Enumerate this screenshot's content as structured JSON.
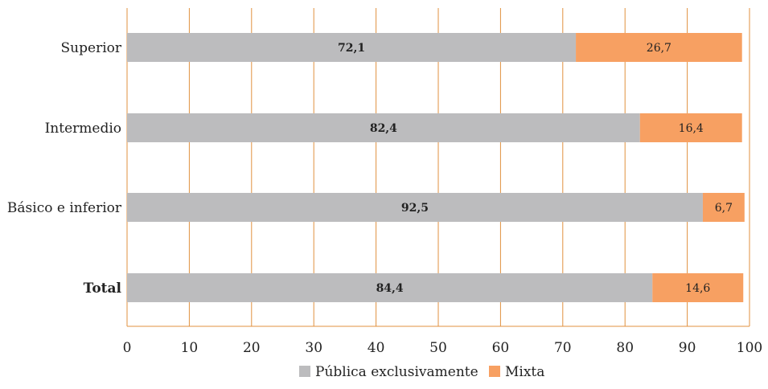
{
  "chart_data": {
    "type": "bar",
    "orientation": "horizontal",
    "stacked": true,
    "categories": [
      "Superior",
      "Intermedio",
      "Básico e inferior",
      "Total"
    ],
    "category_bold": [
      false,
      false,
      false,
      true
    ],
    "series": [
      {
        "name": "Pública exclusivamente",
        "color": "#bcbcbe",
        "values": [
          72.1,
          82.4,
          92.5,
          84.4
        ],
        "labels": [
          "72,1",
          "82,4",
          "92,5",
          "84,4"
        ],
        "label_bold": true
      },
      {
        "name": "Mixta",
        "color": "#f7a062",
        "values": [
          26.7,
          16.4,
          6.7,
          14.6
        ],
        "labels": [
          "26,7",
          "16,4",
          "6,7",
          "14,6"
        ],
        "label_bold": false
      }
    ],
    "xlim": [
      0,
      100
    ],
    "xticks": [
      0,
      10,
      20,
      30,
      40,
      50,
      60,
      70,
      80,
      90,
      100
    ],
    "grid": true,
    "grid_color": "#e0913f",
    "legend_position": "bottom"
  }
}
